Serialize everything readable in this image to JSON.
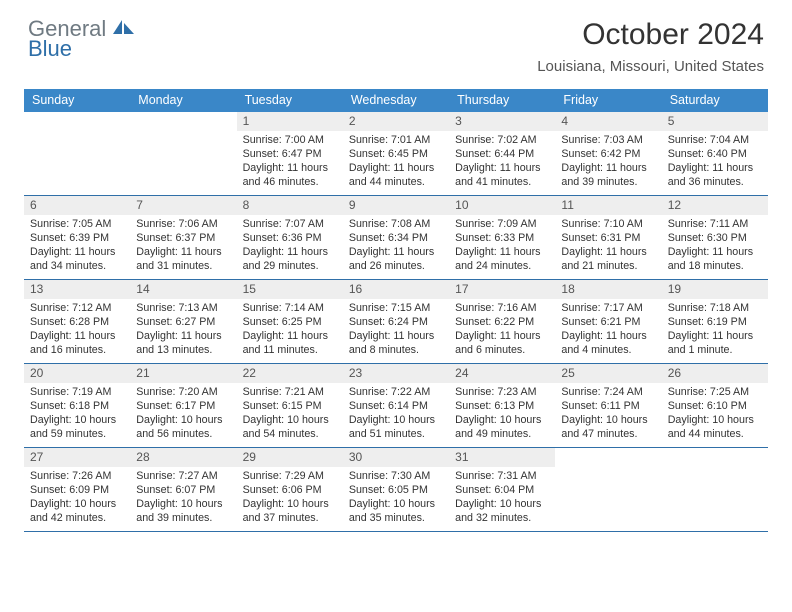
{
  "brand": {
    "text_gray": "General",
    "text_blue": "Blue",
    "logo_fill": "#2f6fa8",
    "gray_color": "#6f7a82"
  },
  "title": "October 2024",
  "subtitle": "Louisiana, Missouri, United States",
  "colors": {
    "header_bg": "#3a87c8",
    "header_text": "#ffffff",
    "daynum_bg": "#eeeeee",
    "cell_border": "#2f6fa8",
    "body_text": "#333333"
  },
  "weekdays": [
    "Sunday",
    "Monday",
    "Tuesday",
    "Wednesday",
    "Thursday",
    "Friday",
    "Saturday"
  ],
  "weeks": [
    [
      null,
      null,
      {
        "n": "1",
        "sr": "7:00 AM",
        "ss": "6:47 PM",
        "dl": "11 hours and 46 minutes."
      },
      {
        "n": "2",
        "sr": "7:01 AM",
        "ss": "6:45 PM",
        "dl": "11 hours and 44 minutes."
      },
      {
        "n": "3",
        "sr": "7:02 AM",
        "ss": "6:44 PM",
        "dl": "11 hours and 41 minutes."
      },
      {
        "n": "4",
        "sr": "7:03 AM",
        "ss": "6:42 PM",
        "dl": "11 hours and 39 minutes."
      },
      {
        "n": "5",
        "sr": "7:04 AM",
        "ss": "6:40 PM",
        "dl": "11 hours and 36 minutes."
      }
    ],
    [
      {
        "n": "6",
        "sr": "7:05 AM",
        "ss": "6:39 PM",
        "dl": "11 hours and 34 minutes."
      },
      {
        "n": "7",
        "sr": "7:06 AM",
        "ss": "6:37 PM",
        "dl": "11 hours and 31 minutes."
      },
      {
        "n": "8",
        "sr": "7:07 AM",
        "ss": "6:36 PM",
        "dl": "11 hours and 29 minutes."
      },
      {
        "n": "9",
        "sr": "7:08 AM",
        "ss": "6:34 PM",
        "dl": "11 hours and 26 minutes."
      },
      {
        "n": "10",
        "sr": "7:09 AM",
        "ss": "6:33 PM",
        "dl": "11 hours and 24 minutes."
      },
      {
        "n": "11",
        "sr": "7:10 AM",
        "ss": "6:31 PM",
        "dl": "11 hours and 21 minutes."
      },
      {
        "n": "12",
        "sr": "7:11 AM",
        "ss": "6:30 PM",
        "dl": "11 hours and 18 minutes."
      }
    ],
    [
      {
        "n": "13",
        "sr": "7:12 AM",
        "ss": "6:28 PM",
        "dl": "11 hours and 16 minutes."
      },
      {
        "n": "14",
        "sr": "7:13 AM",
        "ss": "6:27 PM",
        "dl": "11 hours and 13 minutes."
      },
      {
        "n": "15",
        "sr": "7:14 AM",
        "ss": "6:25 PM",
        "dl": "11 hours and 11 minutes."
      },
      {
        "n": "16",
        "sr": "7:15 AM",
        "ss": "6:24 PM",
        "dl": "11 hours and 8 minutes."
      },
      {
        "n": "17",
        "sr": "7:16 AM",
        "ss": "6:22 PM",
        "dl": "11 hours and 6 minutes."
      },
      {
        "n": "18",
        "sr": "7:17 AM",
        "ss": "6:21 PM",
        "dl": "11 hours and 4 minutes."
      },
      {
        "n": "19",
        "sr": "7:18 AM",
        "ss": "6:19 PM",
        "dl": "11 hours and 1 minute."
      }
    ],
    [
      {
        "n": "20",
        "sr": "7:19 AM",
        "ss": "6:18 PM",
        "dl": "10 hours and 59 minutes."
      },
      {
        "n": "21",
        "sr": "7:20 AM",
        "ss": "6:17 PM",
        "dl": "10 hours and 56 minutes."
      },
      {
        "n": "22",
        "sr": "7:21 AM",
        "ss": "6:15 PM",
        "dl": "10 hours and 54 minutes."
      },
      {
        "n": "23",
        "sr": "7:22 AM",
        "ss": "6:14 PM",
        "dl": "10 hours and 51 minutes."
      },
      {
        "n": "24",
        "sr": "7:23 AM",
        "ss": "6:13 PM",
        "dl": "10 hours and 49 minutes."
      },
      {
        "n": "25",
        "sr": "7:24 AM",
        "ss": "6:11 PM",
        "dl": "10 hours and 47 minutes."
      },
      {
        "n": "26",
        "sr": "7:25 AM",
        "ss": "6:10 PM",
        "dl": "10 hours and 44 minutes."
      }
    ],
    [
      {
        "n": "27",
        "sr": "7:26 AM",
        "ss": "6:09 PM",
        "dl": "10 hours and 42 minutes."
      },
      {
        "n": "28",
        "sr": "7:27 AM",
        "ss": "6:07 PM",
        "dl": "10 hours and 39 minutes."
      },
      {
        "n": "29",
        "sr": "7:29 AM",
        "ss": "6:06 PM",
        "dl": "10 hours and 37 minutes."
      },
      {
        "n": "30",
        "sr": "7:30 AM",
        "ss": "6:05 PM",
        "dl": "10 hours and 35 minutes."
      },
      {
        "n": "31",
        "sr": "7:31 AM",
        "ss": "6:04 PM",
        "dl": "10 hours and 32 minutes."
      },
      null,
      null
    ]
  ],
  "labels": {
    "sunrise_prefix": "Sunrise: ",
    "sunset_prefix": "Sunset: ",
    "daylight_prefix": "Daylight: "
  }
}
